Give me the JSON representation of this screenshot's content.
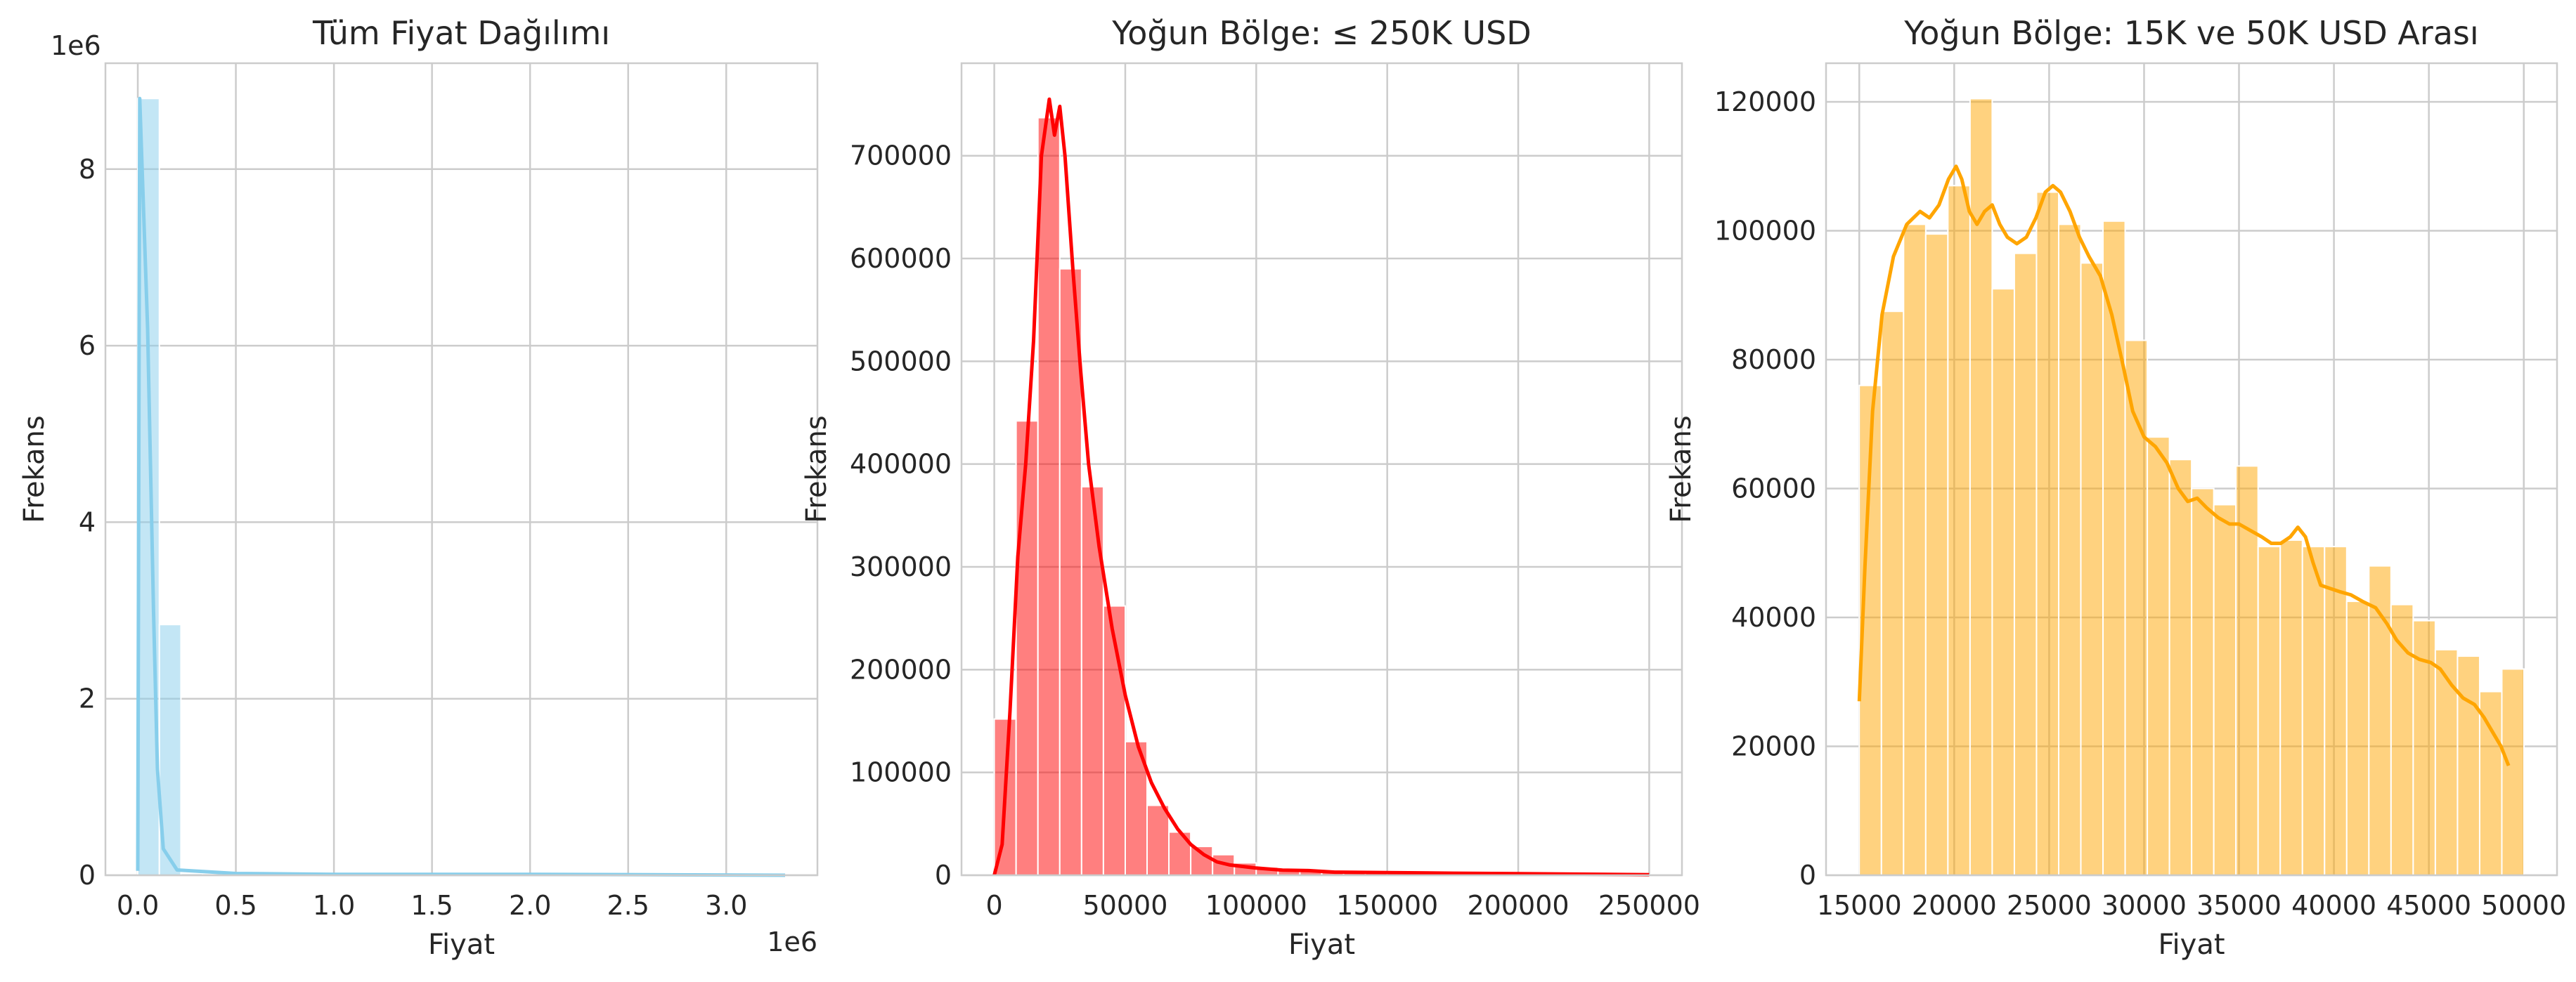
{
  "chart_data": [
    {
      "type": "bar",
      "title": "Tüm Fiyat Dağılımı",
      "xlabel": "Fiyat",
      "ylabel": "Frekans",
      "x_offset_label": "1e6",
      "y_offset_label": "1e6",
      "xlim": [
        -0.165,
        3.465
      ],
      "ylim": [
        0,
        9.2
      ],
      "x_ticks": [
        0.0,
        0.5,
        1.0,
        1.5,
        2.0,
        2.5,
        3.0
      ],
      "x_tick_labels": [
        "0.0",
        "0.5",
        "1.0",
        "1.5",
        "2.0",
        "2.5",
        "3.0"
      ],
      "y_ticks": [
        0,
        2,
        4,
        6,
        8
      ],
      "y_tick_labels": [
        "0",
        "2",
        "4",
        "6",
        "8"
      ],
      "grid": true,
      "color": "#87ceeb",
      "bins": [
        {
          "x0": 0.0,
          "x1": 0.11,
          "value": 8.8
        },
        {
          "x0": 0.11,
          "x1": 0.22,
          "value": 2.84
        },
        {
          "x0": 0.22,
          "x1": 0.33,
          "value": 0.02
        }
      ],
      "kde": [
        [
          0.0,
          0.05
        ],
        [
          0.01,
          8.8
        ],
        [
          0.05,
          6.2
        ],
        [
          0.08,
          3.0
        ],
        [
          0.1,
          1.2
        ],
        [
          0.13,
          0.3
        ],
        [
          0.2,
          0.06
        ],
        [
          0.5,
          0.02
        ],
        [
          1.0,
          0.01
        ],
        [
          2.0,
          0.01
        ],
        [
          3.3,
          0.0
        ]
      ]
    },
    {
      "type": "bar",
      "title": "Yoğun Bölge: ≤ 250K USD",
      "xlabel": "Fiyat",
      "ylabel": "Frekans",
      "xlim": [
        -12500,
        262500
      ],
      "ylim": [
        0,
        790000
      ],
      "x_ticks": [
        0,
        50000,
        100000,
        150000,
        200000,
        250000
      ],
      "x_tick_labels": [
        "0",
        "50000",
        "100000",
        "150000",
        "200000",
        "250000"
      ],
      "y_ticks": [
        0,
        100000,
        200000,
        300000,
        400000,
        500000,
        600000,
        700000
      ],
      "y_tick_labels": [
        "0",
        "100000",
        "200000",
        "300000",
        "400000",
        "500000",
        "600000",
        "700000"
      ],
      "grid": true,
      "color": "#ff0000",
      "bin_start": 0,
      "bin_width": 8333,
      "values": [
        152000,
        442000,
        737000,
        590000,
        378000,
        262000,
        130000,
        68000,
        42000,
        28000,
        20000,
        12000,
        8000,
        6000,
        5000,
        4000,
        3500,
        3000,
        2500,
        2000,
        2000,
        1500,
        1500,
        1200,
        1000,
        1000,
        800,
        800,
        700,
        600
      ],
      "kde": [
        [
          0,
          0
        ],
        [
          3000,
          30000
        ],
        [
          6000,
          160000
        ],
        [
          9000,
          310000
        ],
        [
          12000,
          400000
        ],
        [
          15000,
          520000
        ],
        [
          18000,
          700000
        ],
        [
          21000,
          755000
        ],
        [
          23000,
          720000
        ],
        [
          25000,
          748000
        ],
        [
          27000,
          700000
        ],
        [
          30000,
          590000
        ],
        [
          33000,
          490000
        ],
        [
          36000,
          400000
        ],
        [
          40000,
          320000
        ],
        [
          45000,
          240000
        ],
        [
          50000,
          175000
        ],
        [
          55000,
          125000
        ],
        [
          60000,
          90000
        ],
        [
          65000,
          65000
        ],
        [
          70000,
          45000
        ],
        [
          75000,
          30000
        ],
        [
          80000,
          20000
        ],
        [
          85000,
          13000
        ],
        [
          90000,
          10000
        ],
        [
          100000,
          7000
        ],
        [
          110000,
          5000
        ],
        [
          120000,
          4500
        ],
        [
          130000,
          3000
        ],
        [
          150000,
          2500
        ],
        [
          175000,
          2000
        ],
        [
          200000,
          1500
        ],
        [
          225000,
          1000
        ],
        [
          250000,
          500
        ]
      ]
    },
    {
      "type": "bar",
      "title": "Yoğun Bölge: 15K ve 50K USD Arası",
      "xlabel": "Fiyat",
      "ylabel": "Frekans",
      "xlim": [
        13250,
        51750
      ],
      "ylim": [
        0,
        126000
      ],
      "x_ticks": [
        15000,
        20000,
        25000,
        30000,
        35000,
        40000,
        45000,
        50000
      ],
      "x_tick_labels": [
        "15000",
        "20000",
        "25000",
        "30000",
        "35000",
        "40000",
        "45000",
        "50000"
      ],
      "y_ticks": [
        0,
        20000,
        40000,
        60000,
        80000,
        100000,
        120000
      ],
      "y_tick_labels": [
        "0",
        "20000",
        "40000",
        "60000",
        "80000",
        "100000",
        "120000"
      ],
      "grid": true,
      "color": "#ffa500",
      "bin_start": 15000,
      "bin_width": 1167,
      "values": [
        76000,
        87500,
        101000,
        99500,
        107000,
        120500,
        91000,
        96500,
        106000,
        101000,
        95000,
        101500,
        83000,
        68000,
        64500,
        60000,
        57500,
        63500,
        51000,
        52000,
        51000,
        51000,
        42500,
        48000,
        42000,
        39500,
        35000,
        34000,
        28500,
        32000
      ],
      "kde": [
        [
          15000,
          27000
        ],
        [
          15300,
          48000
        ],
        [
          15700,
          72000
        ],
        [
          16200,
          87000
        ],
        [
          16800,
          96000
        ],
        [
          17500,
          101000
        ],
        [
          18200,
          103000
        ],
        [
          18700,
          102000
        ],
        [
          19200,
          104000
        ],
        [
          19700,
          108000
        ],
        [
          20100,
          110000
        ],
        [
          20400,
          108000
        ],
        [
          20800,
          103000
        ],
        [
          21200,
          101000
        ],
        [
          21600,
          103000
        ],
        [
          22000,
          104000
        ],
        [
          22400,
          101000
        ],
        [
          22800,
          99000
        ],
        [
          23300,
          98000
        ],
        [
          23800,
          99000
        ],
        [
          24300,
          102000
        ],
        [
          24800,
          106000
        ],
        [
          25200,
          107000
        ],
        [
          25600,
          106000
        ],
        [
          26100,
          103000
        ],
        [
          26600,
          99000
        ],
        [
          27100,
          96000
        ],
        [
          27700,
          93000
        ],
        [
          28300,
          87000
        ],
        [
          28900,
          79000
        ],
        [
          29400,
          72000
        ],
        [
          30000,
          68000
        ],
        [
          30600,
          66500
        ],
        [
          31200,
          64000
        ],
        [
          31800,
          60000
        ],
        [
          32300,
          58000
        ],
        [
          32800,
          58500
        ],
        [
          33300,
          57000
        ],
        [
          33900,
          55500
        ],
        [
          34500,
          54500
        ],
        [
          35000,
          54500
        ],
        [
          35600,
          53500
        ],
        [
          36200,
          52500
        ],
        [
          36700,
          51500
        ],
        [
          37200,
          51500
        ],
        [
          37700,
          52500
        ],
        [
          38100,
          54000
        ],
        [
          38500,
          52500
        ],
        [
          38900,
          48500
        ],
        [
          39300,
          45000
        ],
        [
          39800,
          44500
        ],
        [
          40300,
          44000
        ],
        [
          40900,
          43500
        ],
        [
          41500,
          42500
        ],
        [
          42200,
          41500
        ],
        [
          42800,
          39000
        ],
        [
          43300,
          36500
        ],
        [
          43900,
          34500
        ],
        [
          44500,
          33500
        ],
        [
          45100,
          33000
        ],
        [
          45600,
          32000
        ],
        [
          46200,
          29500
        ],
        [
          46800,
          27500
        ],
        [
          47400,
          26500
        ],
        [
          47900,
          24500
        ],
        [
          48400,
          22000
        ],
        [
          48800,
          20000
        ],
        [
          49200,
          17000
        ]
      ]
    }
  ]
}
